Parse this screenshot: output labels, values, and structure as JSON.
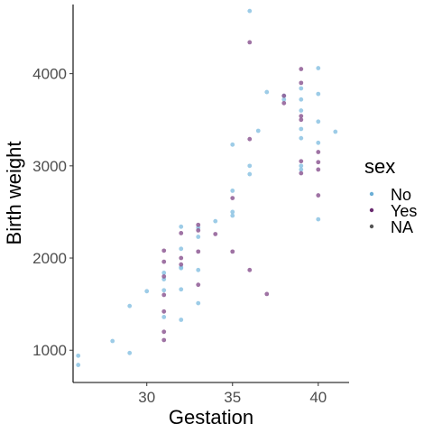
{
  "chart_data": {
    "type": "scatter",
    "xlabel": "Gestation",
    "ylabel": "Birth weight",
    "xlim": [
      25.7,
      41.8
    ],
    "ylim": [
      650,
      4750
    ],
    "x_ticks": [
      30,
      35,
      40
    ],
    "y_ticks": [
      1000,
      2000,
      3000,
      4000
    ],
    "x_tick_labels": [
      "30",
      "35",
      "40"
    ],
    "y_tick_labels": [
      "1000",
      "2000",
      "3000",
      "4000"
    ],
    "grid": false,
    "legend": {
      "title": "sex",
      "placement": "right",
      "entries": [
        {
          "label": "No",
          "color": "#6baed6"
        },
        {
          "label": "Yes",
          "color": "#6a2c70"
        },
        {
          "label": "NA",
          "color": "#555555"
        }
      ]
    },
    "series": [
      {
        "name": "No",
        "color": "#8cc3e3",
        "points": [
          [
            26,
            940
          ],
          [
            26,
            840
          ],
          [
            28,
            1100
          ],
          [
            29,
            970
          ],
          [
            29,
            1480
          ],
          [
            30,
            1640
          ],
          [
            31,
            1650
          ],
          [
            31,
            1360
          ],
          [
            31,
            1770
          ],
          [
            31,
            1840
          ],
          [
            32,
            1890
          ],
          [
            32,
            1900
          ],
          [
            32,
            2100
          ],
          [
            32,
            2340
          ],
          [
            32,
            1660
          ],
          [
            32,
            1330
          ],
          [
            33,
            1870
          ],
          [
            33,
            1510
          ],
          [
            33,
            2230
          ],
          [
            33,
            2330
          ],
          [
            34,
            2400
          ],
          [
            35,
            2460
          ],
          [
            35,
            2500
          ],
          [
            35,
            2730
          ],
          [
            35,
            3230
          ],
          [
            36,
            2910
          ],
          [
            36,
            3000
          ],
          [
            36,
            4680
          ],
          [
            36.5,
            3380
          ],
          [
            37,
            3800
          ],
          [
            38,
            3720
          ],
          [
            38,
            3760
          ],
          [
            39,
            3840
          ],
          [
            39,
            3720
          ],
          [
            39,
            3400
          ],
          [
            39,
            3300
          ],
          [
            39,
            3000
          ],
          [
            39,
            3600
          ],
          [
            39,
            2960
          ],
          [
            40,
            4060
          ],
          [
            40,
            3780
          ],
          [
            40,
            3480
          ],
          [
            40,
            3250
          ],
          [
            40,
            2420
          ],
          [
            41,
            3370
          ]
        ]
      },
      {
        "name": "Yes",
        "color": "#8e5a94",
        "points": [
          [
            31,
            2080
          ],
          [
            31,
            1960
          ],
          [
            31,
            1800
          ],
          [
            31,
            1600
          ],
          [
            31,
            1420
          ],
          [
            31,
            1200
          ],
          [
            31,
            1110
          ],
          [
            32,
            2270
          ],
          [
            32,
            1930
          ],
          [
            32,
            2000
          ],
          [
            33,
            2360
          ],
          [
            33,
            2300
          ],
          [
            33,
            2070
          ],
          [
            33,
            1710
          ],
          [
            34,
            2260
          ],
          [
            35,
            2650
          ],
          [
            35,
            2070
          ],
          [
            36,
            4340
          ],
          [
            36,
            3290
          ],
          [
            36,
            1870
          ],
          [
            37,
            1610
          ],
          [
            38,
            3760
          ],
          [
            38,
            3680
          ],
          [
            39,
            4050
          ],
          [
            39,
            3900
          ],
          [
            39,
            3500
          ],
          [
            39,
            3050
          ],
          [
            39,
            2920
          ],
          [
            39,
            3540
          ],
          [
            40,
            3150
          ],
          [
            40,
            3040
          ],
          [
            40,
            2960
          ],
          [
            40,
            2680
          ]
        ]
      }
    ]
  }
}
